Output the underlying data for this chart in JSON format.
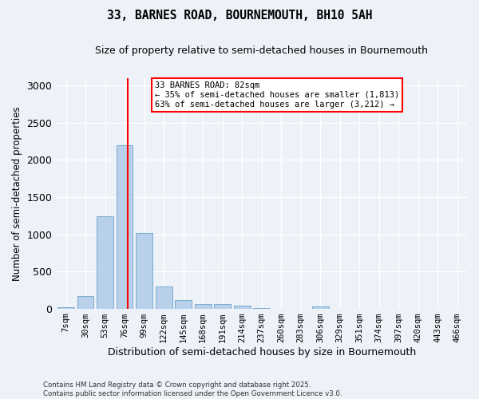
{
  "title": "33, BARNES ROAD, BOURNEMOUTH, BH10 5AH",
  "subtitle": "Size of property relative to semi-detached houses in Bournemouth",
  "xlabel": "Distribution of semi-detached houses by size in Bournemouth",
  "ylabel": "Number of semi-detached properties",
  "categories": [
    "7sqm",
    "30sqm",
    "53sqm",
    "76sqm",
    "99sqm",
    "122sqm",
    "145sqm",
    "168sqm",
    "191sqm",
    "214sqm",
    "237sqm",
    "260sqm",
    "283sqm",
    "306sqm",
    "329sqm",
    "351sqm",
    "374sqm",
    "397sqm",
    "420sqm",
    "443sqm",
    "466sqm"
  ],
  "values": [
    15,
    165,
    1240,
    2200,
    1020,
    295,
    110,
    60,
    55,
    40,
    10,
    0,
    0,
    30,
    0,
    0,
    0,
    0,
    0,
    0,
    0
  ],
  "bar_color": "#b8d0ea",
  "bar_edge_color": "#7aabcf",
  "property_line_x": 3.15,
  "annotation_text": "33 BARNES ROAD: 82sqm\n← 35% of semi-detached houses are smaller (1,813)\n63% of semi-detached houses are larger (3,212) →",
  "ylim": [
    0,
    3100
  ],
  "yticks": [
    0,
    500,
    1000,
    1500,
    2000,
    2500,
    3000
  ],
  "background_color": "#edf1f8",
  "grid_color": "#ffffff",
  "footer_line1": "Contains HM Land Registry data © Crown copyright and database right 2025.",
  "footer_line2": "Contains public sector information licensed under the Open Government Licence v3.0."
}
